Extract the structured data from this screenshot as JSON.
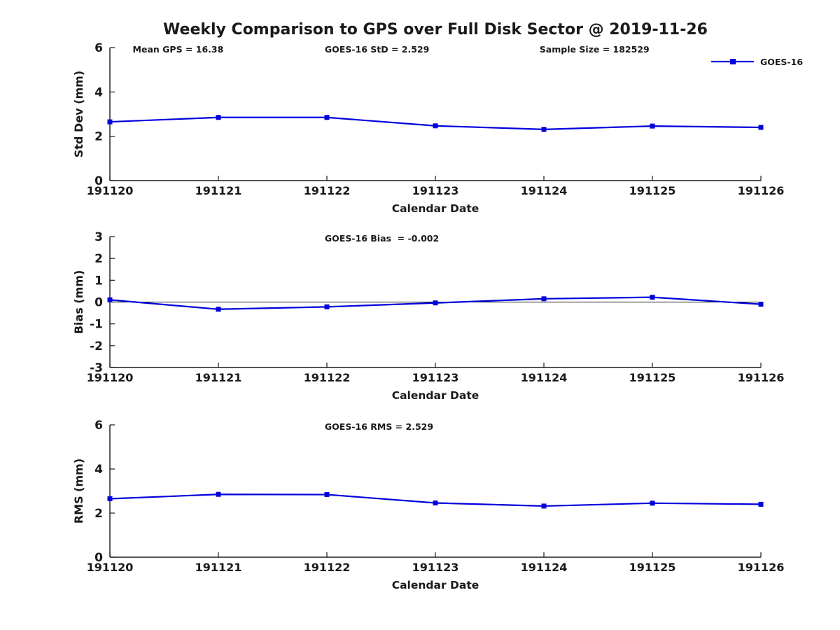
{
  "title": "Weekly Comparison to GPS over Full Disk Sector @ 2019-11-26",
  "x_axis_label": "Calendar Date",
  "legend": {
    "label": "GOES-16"
  },
  "colors": {
    "line": "#0000dd",
    "text": "#1a1a1a",
    "axis": "#1a1a1a",
    "background": "#ffffff"
  },
  "chart_data": [
    {
      "type": "line",
      "name": "std-dev",
      "ylabel": "Std Dev (mm)",
      "xlabel": "Calendar Date",
      "categories": [
        "191120",
        "191121",
        "191122",
        "191123",
        "191124",
        "191125",
        "191126"
      ],
      "series": [
        {
          "name": "GOES-16",
          "values": [
            2.65,
            2.85,
            2.85,
            2.47,
            2.31,
            2.46,
            2.4
          ]
        }
      ],
      "ylim": [
        0,
        6
      ],
      "yticks": [
        0,
        2,
        4,
        6
      ],
      "grid": false,
      "zero_line": false,
      "legend_visible": true,
      "legend_position": "top-right-outside-plot",
      "annotations": [
        {
          "text": "Mean GPS = 16.38",
          "xfrac": 0.035
        },
        {
          "text": "GOES-16 StD = 2.529",
          "xfrac": 0.33
        },
        {
          "text": "Sample Size = 182529",
          "xfrac": 0.66
        }
      ]
    },
    {
      "type": "line",
      "name": "bias",
      "ylabel": "Bias (mm)",
      "xlabel": "Calendar Date",
      "categories": [
        "191120",
        "191121",
        "191122",
        "191123",
        "191124",
        "191125",
        "191126"
      ],
      "series": [
        {
          "name": "GOES-16",
          "values": [
            0.1,
            -0.33,
            -0.22,
            -0.04,
            0.15,
            0.22,
            -0.1
          ]
        }
      ],
      "ylim": [
        -3,
        3
      ],
      "yticks": [
        -3,
        -2,
        -1,
        0,
        1,
        2,
        3
      ],
      "grid": false,
      "zero_line": true,
      "legend_visible": false,
      "annotations": [
        {
          "text": "GOES-16 Bias  = -0.002",
          "xfrac": 0.33
        }
      ]
    },
    {
      "type": "line",
      "name": "rms",
      "ylabel": "RMS (mm)",
      "xlabel": "Calendar Date",
      "categories": [
        "191120",
        "191121",
        "191122",
        "191123",
        "191124",
        "191125",
        "191126"
      ],
      "series": [
        {
          "name": "GOES-16",
          "values": [
            2.65,
            2.85,
            2.84,
            2.46,
            2.32,
            2.45,
            2.4
          ]
        }
      ],
      "ylim": [
        0,
        6
      ],
      "yticks": [
        0,
        2,
        4,
        6
      ],
      "grid": false,
      "zero_line": false,
      "legend_visible": false,
      "annotations": [
        {
          "text": "GOES-16 RMS = 2.529",
          "xfrac": 0.33
        }
      ]
    }
  ]
}
